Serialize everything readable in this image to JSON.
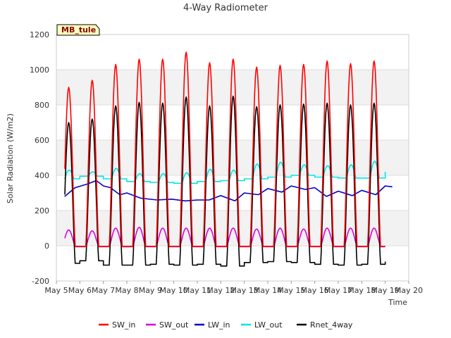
{
  "chart_data": {
    "type": "line",
    "title": "4-Way Radiometer",
    "xlabel": "Time",
    "ylabel": "Solar Radiation (W/m2)",
    "ylim": [
      -200,
      1200
    ],
    "xlim": [
      5,
      20
    ],
    "x_ticks": [
      {
        "v": 5,
        "label": "May 5"
      },
      {
        "v": 6,
        "label": "May 6"
      },
      {
        "v": 7,
        "label": "May 7"
      },
      {
        "v": 8,
        "label": "May 8"
      },
      {
        "v": 9,
        "label": "May 9"
      },
      {
        "v": 10,
        "label": "May 10"
      },
      {
        "v": 11,
        "label": "May 11"
      },
      {
        "v": 12,
        "label": "May 12"
      },
      {
        "v": 13,
        "label": "May 13"
      },
      {
        "v": 14,
        "label": "May 14"
      },
      {
        "v": 15,
        "label": "May 15"
      },
      {
        "v": 16,
        "label": "May 16"
      },
      {
        "v": 17,
        "label": "May 17"
      },
      {
        "v": 18,
        "label": "May 18"
      },
      {
        "v": 19,
        "label": "May 19"
      },
      {
        "v": 20,
        "label": "May 20"
      }
    ],
    "y_ticks": [
      -200,
      0,
      200,
      400,
      600,
      800,
      1000,
      1200
    ],
    "grid": true,
    "legend_position": "bottom",
    "annotation": "MB_tule",
    "days": [
      5,
      6,
      7,
      8,
      9,
      10,
      11,
      12,
      13,
      14,
      15,
      16,
      17,
      18,
      19
    ],
    "series": [
      {
        "name": "SW_in",
        "color": "#ff0000",
        "daily_peak": [
          900,
          940,
          1030,
          1060,
          1060,
          1100,
          1040,
          1060,
          1015,
          1025,
          1030,
          1050,
          1035,
          1050
        ],
        "night_value": -5
      },
      {
        "name": "SW_out",
        "color": "#dd00dd",
        "daily_peak": [
          90,
          85,
          100,
          105,
          100,
          100,
          100,
          100,
          95,
          100,
          95,
          100,
          100,
          100
        ],
        "night_value": -3
      },
      {
        "name": "LW_in",
        "color": "#0000cc",
        "points": [
          [
            5.35,
            280
          ],
          [
            5.8,
            330
          ],
          [
            6.3,
            350
          ],
          [
            6.7,
            370
          ],
          [
            7.0,
            340
          ],
          [
            7.3,
            330
          ],
          [
            7.7,
            290
          ],
          [
            8.0,
            300
          ],
          [
            8.6,
            270
          ],
          [
            9.3,
            260
          ],
          [
            9.9,
            265
          ],
          [
            10.5,
            255
          ],
          [
            11.0,
            260
          ],
          [
            11.5,
            260
          ],
          [
            12.0,
            285
          ],
          [
            12.6,
            255
          ],
          [
            13.0,
            300
          ],
          [
            13.6,
            290
          ],
          [
            14.0,
            325
          ],
          [
            14.6,
            305
          ],
          [
            15.0,
            340
          ],
          [
            15.6,
            320
          ],
          [
            16.0,
            330
          ],
          [
            16.5,
            280
          ],
          [
            17.0,
            310
          ],
          [
            17.6,
            285
          ],
          [
            18.0,
            315
          ],
          [
            18.6,
            290
          ],
          [
            19.0,
            340
          ],
          [
            19.3,
            335
          ]
        ]
      },
      {
        "name": "LW_out",
        "color": "#00e5e5",
        "night_base": [
          380,
          395,
          380,
          365,
          360,
          355,
          365,
          370,
          380,
          390,
          400,
          390,
          385,
          385,
          420
        ],
        "day_peak": [
          430,
          420,
          440,
          410,
          410,
          415,
          435,
          430,
          465,
          475,
          460,
          455,
          460,
          480
        ]
      },
      {
        "name": "Rnet_4way",
        "color": "#000000",
        "daily_peak": [
          700,
          720,
          795,
          815,
          810,
          845,
          795,
          850,
          790,
          800,
          805,
          810,
          800,
          810
        ],
        "night_value": [
          -100,
          -85,
          -110,
          -110,
          -105,
          -110,
          -105,
          -115,
          -95,
          -90,
          -95,
          -105,
          -110,
          -105,
          -90
        ]
      }
    ]
  }
}
